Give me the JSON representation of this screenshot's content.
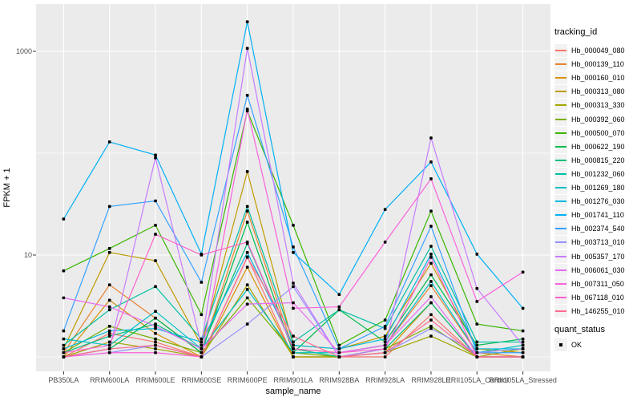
{
  "chart_data": {
    "type": "line",
    "title": "",
    "xlabel": "sample_name",
    "ylabel": "FPKM + 1",
    "yscale": "log10",
    "grid": true,
    "legend_position": "right",
    "yticks": [
      10,
      1000
    ],
    "yticks_minor": [
      1,
      100
    ],
    "ylim_px_note": "log axis, decade = 127px",
    "categories": [
      "PB350LA",
      "RRIM600LA",
      "RRIM600LE",
      "RRIM600SE",
      "RRIM600PE",
      "RRIM901LA",
      "RRIM928BA",
      "RRIM928LA",
      "RRIM928LE",
      "RRII105LA_Control",
      "RRII105LA_Stressed"
    ],
    "point_color": "#000000",
    "panel_bg": "#EBEBEB",
    "gridline_color": "#FFFFFF",
    "series": [
      {
        "name": "Hb_000049_080",
        "color": "#F8766D",
        "values": [
          1.0,
          1.7,
          1.4,
          1.0,
          9.6,
          1.0,
          1.0,
          1.0,
          2.6,
          1.0,
          1.0
        ]
      },
      {
        "name": "Hb_000139_110",
        "color": "#EA8331",
        "values": [
          1.1,
          5.1,
          2.4,
          1.1,
          27,
          1.2,
          1.1,
          1.3,
          5.0,
          1.1,
          1.0
        ]
      },
      {
        "name": "Hb_000160_010",
        "color": "#D89000",
        "values": [
          1.0,
          3.6,
          1.7,
          1.0,
          7.6,
          1.0,
          1.0,
          1.1,
          3.4,
          1.0,
          1.0
        ]
      },
      {
        "name": "Hb_000313_080",
        "color": "#C09B00",
        "values": [
          1.2,
          10.6,
          8.8,
          1.3,
          66,
          1.3,
          1.2,
          1.6,
          8.3,
          1.2,
          1.1
        ]
      },
      {
        "name": "Hb_000313_330",
        "color": "#A3A500",
        "values": [
          1.0,
          1.4,
          1.2,
          1.0,
          5.1,
          1.0,
          1.0,
          1.1,
          1.6,
          1.0,
          1.2
        ]
      },
      {
        "name": "Hb_000392_060",
        "color": "#7CAE00",
        "values": [
          1.1,
          2.0,
          1.5,
          1.1,
          3.8,
          1.1,
          1.0,
          1.2,
          2.0,
          1.0,
          1.0
        ]
      },
      {
        "name": "Hb_000500_070",
        "color": "#39B600",
        "values": [
          7.0,
          11.6,
          19.6,
          2.6,
          260,
          19.6,
          1.3,
          2.3,
          27,
          2.1,
          1.8
        ]
      },
      {
        "name": "Hb_000622_190",
        "color": "#00BB4E",
        "values": [
          1.0,
          1.2,
          2.4,
          1.1,
          21,
          1.1,
          2.9,
          1.4,
          6.4,
          1.3,
          1.5
        ]
      },
      {
        "name": "Hb_000815_220",
        "color": "#00BF7D",
        "values": [
          1.1,
          1.6,
          2.1,
          1.2,
          13,
          1.2,
          1.0,
          1.2,
          3.4,
          1.0,
          1.0
        ]
      },
      {
        "name": "Hb_001232_060",
        "color": "#00C1A3",
        "values": [
          1.3,
          2.9,
          4.9,
          1.5,
          30,
          1.4,
          2.9,
          1.9,
          12.2,
          1.4,
          1.4
        ]
      },
      {
        "name": "Hb_001269_180",
        "color": "#00BFC4",
        "values": [
          1.5,
          1.3,
          2.8,
          1.2,
          4.6,
          1.1,
          1.1,
          1.3,
          5.5,
          1.1,
          1.3
        ]
      },
      {
        "name": "Hb_001276_030",
        "color": "#00BAE0",
        "values": [
          1.2,
          1.8,
          1.9,
          1.4,
          10.6,
          1.3,
          1.2,
          1.5,
          10.2,
          1.2,
          1.2
        ]
      },
      {
        "name": "Hb_001741_110",
        "color": "#00B0F6",
        "values": [
          22.6,
          129,
          96,
          10.2,
          1950,
          10.6,
          4.1,
          28,
          82,
          10.2,
          3.0
        ]
      },
      {
        "name": "Hb_002374_540",
        "color": "#35A2FF",
        "values": [
          1.8,
          30,
          34,
          5.4,
          370,
          12,
          1.2,
          2.0,
          19.2,
          1.1,
          1.1
        ]
      },
      {
        "name": "Hb_003713_010",
        "color": "#9590FF",
        "values": [
          1.0,
          1.1,
          1.3,
          1.0,
          2.1,
          4.9,
          1.0,
          1.1,
          1.9,
          1.1,
          1.2
        ]
      },
      {
        "name": "Hb_005357_170",
        "color": "#C77CFF",
        "values": [
          1.0,
          1.2,
          90,
          1.3,
          1070,
          5.3,
          1.0,
          1.2,
          141,
          4.7,
          1.3
        ]
      },
      {
        "name": "Hb_006061_030",
        "color": "#E76BF3",
        "values": [
          3.8,
          3.1,
          2.0,
          1.2,
          3.3,
          3.4,
          1.1,
          1.3,
          3.9,
          1.0,
          1.0
        ]
      },
      {
        "name": "Hb_007311_050",
        "color": "#FA62DB",
        "values": [
          1.0,
          1.1,
          1.1,
          1.0,
          270,
          3.0,
          3.1,
          13.4,
          56,
          3.5,
          6.8
        ]
      },
      {
        "name": "Hb_067118_010",
        "color": "#FF61CC",
        "values": [
          1.1,
          1.3,
          16,
          10.0,
          13.4,
          1.2,
          1.1,
          1.2,
          9.5,
          1.0,
          1.0
        ]
      },
      {
        "name": "Hb_146255_010",
        "color": "#FF6C91",
        "values": [
          1.0,
          1.2,
          1.3,
          1.0,
          9.5,
          1.6,
          1.0,
          1.1,
          2.3,
          1.0,
          1.0
        ]
      }
    ]
  },
  "axes": {
    "y_title": "FPKM + 1",
    "x_title": "sample_name",
    "y_tick_labels": [
      "1000",
      "10"
    ]
  },
  "legend": {
    "tracking_title": "tracking_id",
    "quant_title": "quant_status",
    "quant_value": "OK"
  }
}
